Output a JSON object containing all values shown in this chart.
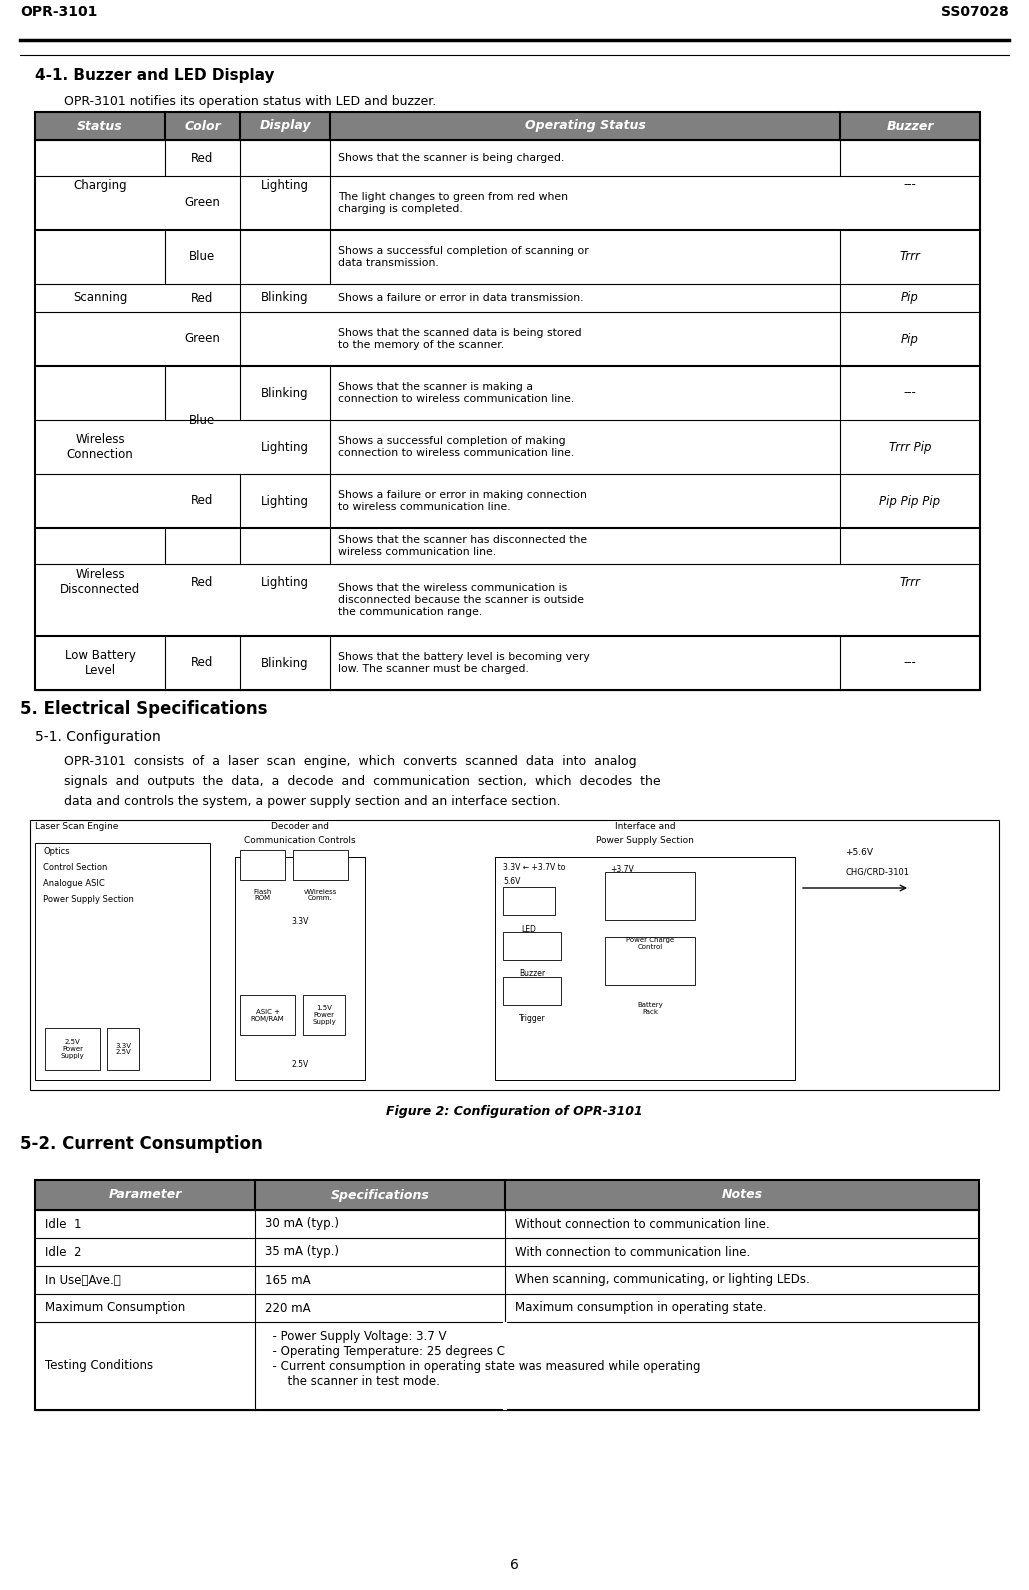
{
  "header_left": "OPR-3101",
  "header_right": "SS07028",
  "section_title": "4-1. Buzzer and LED Display",
  "section_subtitle": "OPR-3101 notifies its operation status with LED and buzzer.",
  "table1_headers": [
    "Status",
    "Color",
    "Display",
    "Operating Status",
    "Buzzer"
  ],
  "op_texts": [
    "Shows that the scanner is being charged.",
    "The light changes to green from red when\ncharging is completed.",
    "Shows a successful completion of scanning or\ndata transmission.",
    "Shows a failure or error in data transmission.",
    "Shows that the scanned data is being stored\nto the memory of the scanner.",
    "Shows that the scanner is making a\nconnection to wireless communication line.",
    "Shows a successful completion of making\nconnection to wireless communication line.",
    "Shows a failure or error in making connection\nto wireless communication line.",
    "Shows that the scanner has disconnected the\nwireless communication line.",
    "Shows that the wireless communication is\ndisconnected because the scanner is outside\nthe communication range.",
    "Shows that the battery level is becoming very\nlow. The scanner must be charged."
  ],
  "section2_title": "5. Electrical Specifications",
  "section2_sub": "5-1. Configuration",
  "section2_para1": "OPR-3101  consists  of  a  laser  scan  engine,  which  converts  scanned  data  into  analog",
  "section2_para2": "signals  and  outputs  the  data,  a  decode  and  communication  section,  which  decodes  the",
  "section2_para3": "data and controls the system, a power supply section and an interface section.",
  "fig_caption": "Figure 2: Configuration of OPR-3101",
  "section3_title": "5-2. Current Consumption",
  "table2_headers": [
    "Parameter",
    "Specifications",
    "Notes"
  ],
  "t2_params": [
    "Idle  1",
    "Idle  2",
    "In Use（Ave.）",
    "Maximum Consumption",
    "Testing Conditions"
  ],
  "t2_specs": [
    "30 mA (typ.)",
    "35 mA (typ.)",
    "165 mA",
    "220 mA",
    ""
  ],
  "t2_notes": [
    "Without connection to communication line.",
    "With connection to communication line.",
    "When scanning, communicating, or lighting LEDs.",
    "Maximum consumption in operating state.",
    ""
  ],
  "t2_testing": "  - Power Supply Voltage: 3.7 V\n  - Operating Temperature: 25 degrees C\n  - Current consumption in operating state was measured while operating\n      the scanner in test mode.",
  "page_number": "6"
}
